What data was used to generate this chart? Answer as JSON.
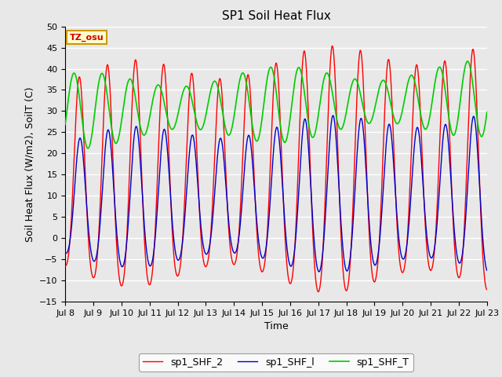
{
  "title": "SP1 Soil Heat Flux",
  "xlabel": "Time",
  "ylabel": "Soil Heat Flux (W/m2), SoilT (C)",
  "ylim": [
    -15,
    50
  ],
  "yticks": [
    -15,
    -10,
    -5,
    0,
    5,
    10,
    15,
    20,
    25,
    30,
    35,
    40,
    45,
    50
  ],
  "xtick_labels": [
    "Jul 8",
    "Jul 9",
    "Jul 10",
    "Jul 11",
    "Jul 12",
    "Jul 13",
    "Jul 14",
    "Jul 15",
    "Jul 16",
    "Jul 17",
    "Jul 18",
    "Jul 19",
    "Jul 20",
    "Jul 21",
    "Jul 22",
    "Jul 23"
  ],
  "watermark_text": "TZ_osu",
  "watermark_color": "#cc0000",
  "watermark_bg": "#ffffcc",
  "watermark_border": "#cc9900",
  "line_colors": {
    "sp1_SHF_2": "#ff0000",
    "sp1_SHF_1": "#0000cc",
    "sp1_SHF_T": "#00cc00"
  },
  "legend_labels": [
    "sp1_SHF_2",
    "sp1_SHF_l",
    "sp1_SHF_T"
  ],
  "background_color": "#e8e8e8",
  "grid_color": "#ffffff",
  "title_fontsize": 11,
  "axis_fontsize": 9,
  "tick_fontsize": 8,
  "n_days": 15,
  "n_per_day": 96
}
